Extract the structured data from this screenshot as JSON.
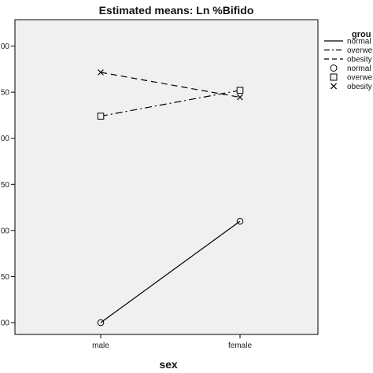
{
  "chart_data": {
    "type": "line",
    "title": "Estimated means: Ln %Bifido",
    "xlabel": "sex",
    "ylabel": "",
    "categories": [
      "male",
      "female"
    ],
    "y_tick_labels": [
      "00",
      "50",
      "00",
      "50",
      "00",
      "50",
      "00"
    ],
    "ylim": [
      0,
      6.3
    ],
    "y_ticks": [
      0,
      1,
      2,
      3,
      4,
      5,
      6
    ],
    "grid": false,
    "legend_title": "grou",
    "legend_placement": "right",
    "series": [
      {
        "name": "normal",
        "values": [
          0,
          2.2
        ],
        "line_style": "solid",
        "marker": "circle",
        "color": "#000000"
      },
      {
        "name": "overwe",
        "values": [
          4.48,
          5.04
        ],
        "line_style": "dashdot",
        "marker": "square",
        "color": "#000000"
      },
      {
        "name": "obesity",
        "values": [
          5.43,
          4.89
        ],
        "line_style": "dashed",
        "marker": "x",
        "color": "#000000"
      }
    ],
    "legend_entries": [
      {
        "label": "normal",
        "symbol": "solid-line"
      },
      {
        "label": "overwe",
        "symbol": "dashdot-line"
      },
      {
        "label": "obesity",
        "symbol": "dashed-line"
      },
      {
        "label": "normal",
        "symbol": "circle"
      },
      {
        "label": "overwe",
        "symbol": "square"
      },
      {
        "label": "obesity",
        "symbol": "x"
      }
    ],
    "colors": {
      "plot_background": "#f0f0f0",
      "axis": "#000000"
    }
  }
}
